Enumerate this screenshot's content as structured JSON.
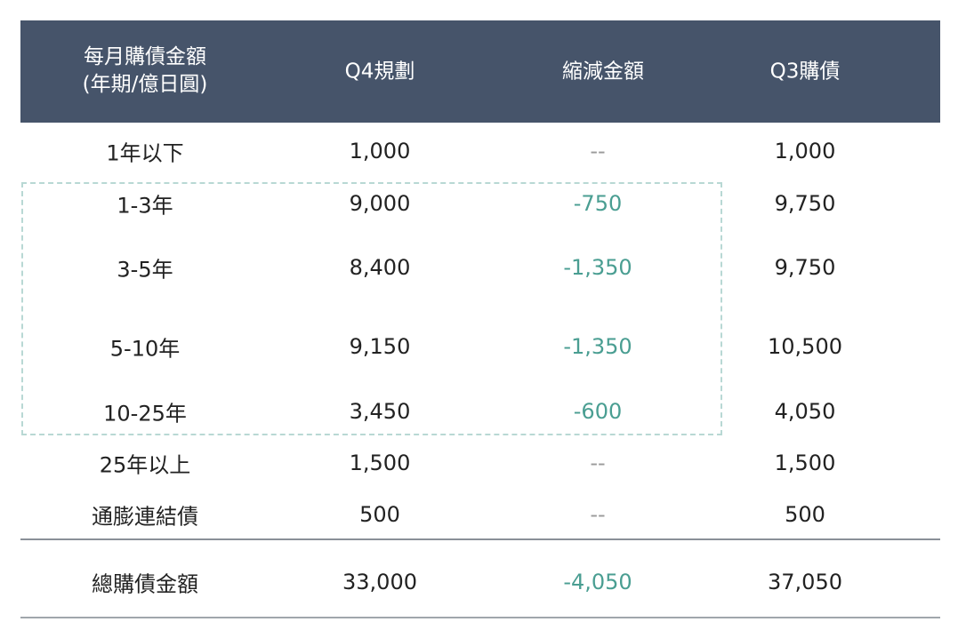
{
  "header": {
    "col1_line1": "每月購債金額",
    "col1_line2": "(年期/億日圓)",
    "col2": "Q4規劃",
    "col3": "縮減金額",
    "col4": "Q3購債"
  },
  "rows": [
    {
      "term": "1年以下",
      "q4": "1,000",
      "cut": "--",
      "q3": "1,000"
    },
    {
      "term": "1-3年",
      "q4": "9,000",
      "cut": "-750",
      "q3": "9,750"
    },
    {
      "term": "3-5年",
      "q4": "8,400",
      "cut": "-1,350",
      "q3": "9,750"
    },
    {
      "term": "5-10年",
      "q4": "9,150",
      "cut": "-1,350",
      "q3": "10,500"
    },
    {
      "term": "10-25年",
      "q4": "3,450",
      "cut": "-600",
      "q3": "4,050"
    },
    {
      "term": "25年以上",
      "q4": "1,500",
      "cut": "--",
      "q3": "1,500"
    },
    {
      "term": "通膨連結債",
      "q4": "500",
      "cut": "--",
      "q3": "500"
    }
  ],
  "total": {
    "term": "總購債金額",
    "q4": "33,000",
    "cut": "-4,050",
    "q3": "37,050"
  },
  "colors": {
    "header_bg": "#46546a",
    "reduction": "#4a9e92",
    "highlight_border": "#b8d8d4"
  }
}
